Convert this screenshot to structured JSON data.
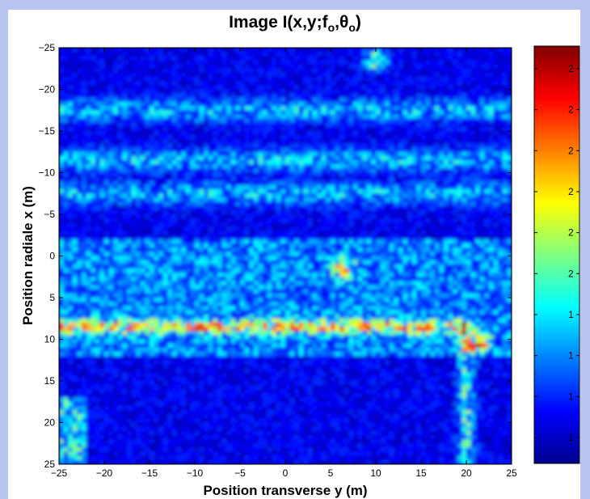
{
  "chart_data": {
    "type": "heatmap",
    "title": {
      "prefix": "Image I(x,y;f",
      "sub1": "o",
      "mid": ",θ",
      "sub2": "o",
      "suffix": ")"
    },
    "xlabel": "Position transverse  y (m)",
    "ylabel": "Position radiale  x (m)",
    "xlim": [
      -25,
      25
    ],
    "ylim": [
      -25,
      25
    ],
    "y_axis_reversed": true,
    "x_ticks": [
      -25,
      -20,
      -15,
      -10,
      -5,
      0,
      5,
      10,
      15,
      20,
      25
    ],
    "y_ticks": [
      -25,
      -20,
      -15,
      -10,
      -5,
      0,
      5,
      10,
      15,
      20,
      25
    ],
    "colormap": "jet",
    "colorbar": {
      "tick_labels": [
        "2",
        "2",
        "2",
        "2",
        "2",
        "2",
        "1",
        "1",
        "1",
        "1"
      ],
      "placement": "right"
    },
    "features": [
      {
        "kind": "strong-line",
        "x": 8.5,
        "y_from": -25,
        "y_to": 20
      },
      {
        "kind": "bright-band",
        "x": -17.5,
        "y_from": -25,
        "y_to": 25
      },
      {
        "kind": "bright-band",
        "x": -11.5,
        "y_from": -25,
        "y_to": 25
      },
      {
        "kind": "bright-band",
        "x": -7.5,
        "y_from": -25,
        "y_to": 25
      },
      {
        "kind": "bright-region",
        "x_from": -2,
        "x_to": 12,
        "y_from": -25,
        "y_to": 25
      },
      {
        "kind": "vertical-line",
        "y": 20,
        "x_from": 8,
        "x_to": 25
      },
      {
        "kind": "peak",
        "x": 1.5,
        "y": 6.5
      },
      {
        "kind": "peak",
        "x": 10.5,
        "y": 21.5
      },
      {
        "kind": "peak",
        "x": -23.5,
        "y": 10
      },
      {
        "kind": "corner-patch",
        "x_from": 17,
        "x_to": 25,
        "y_from": -25,
        "y_to": -22
      }
    ]
  }
}
